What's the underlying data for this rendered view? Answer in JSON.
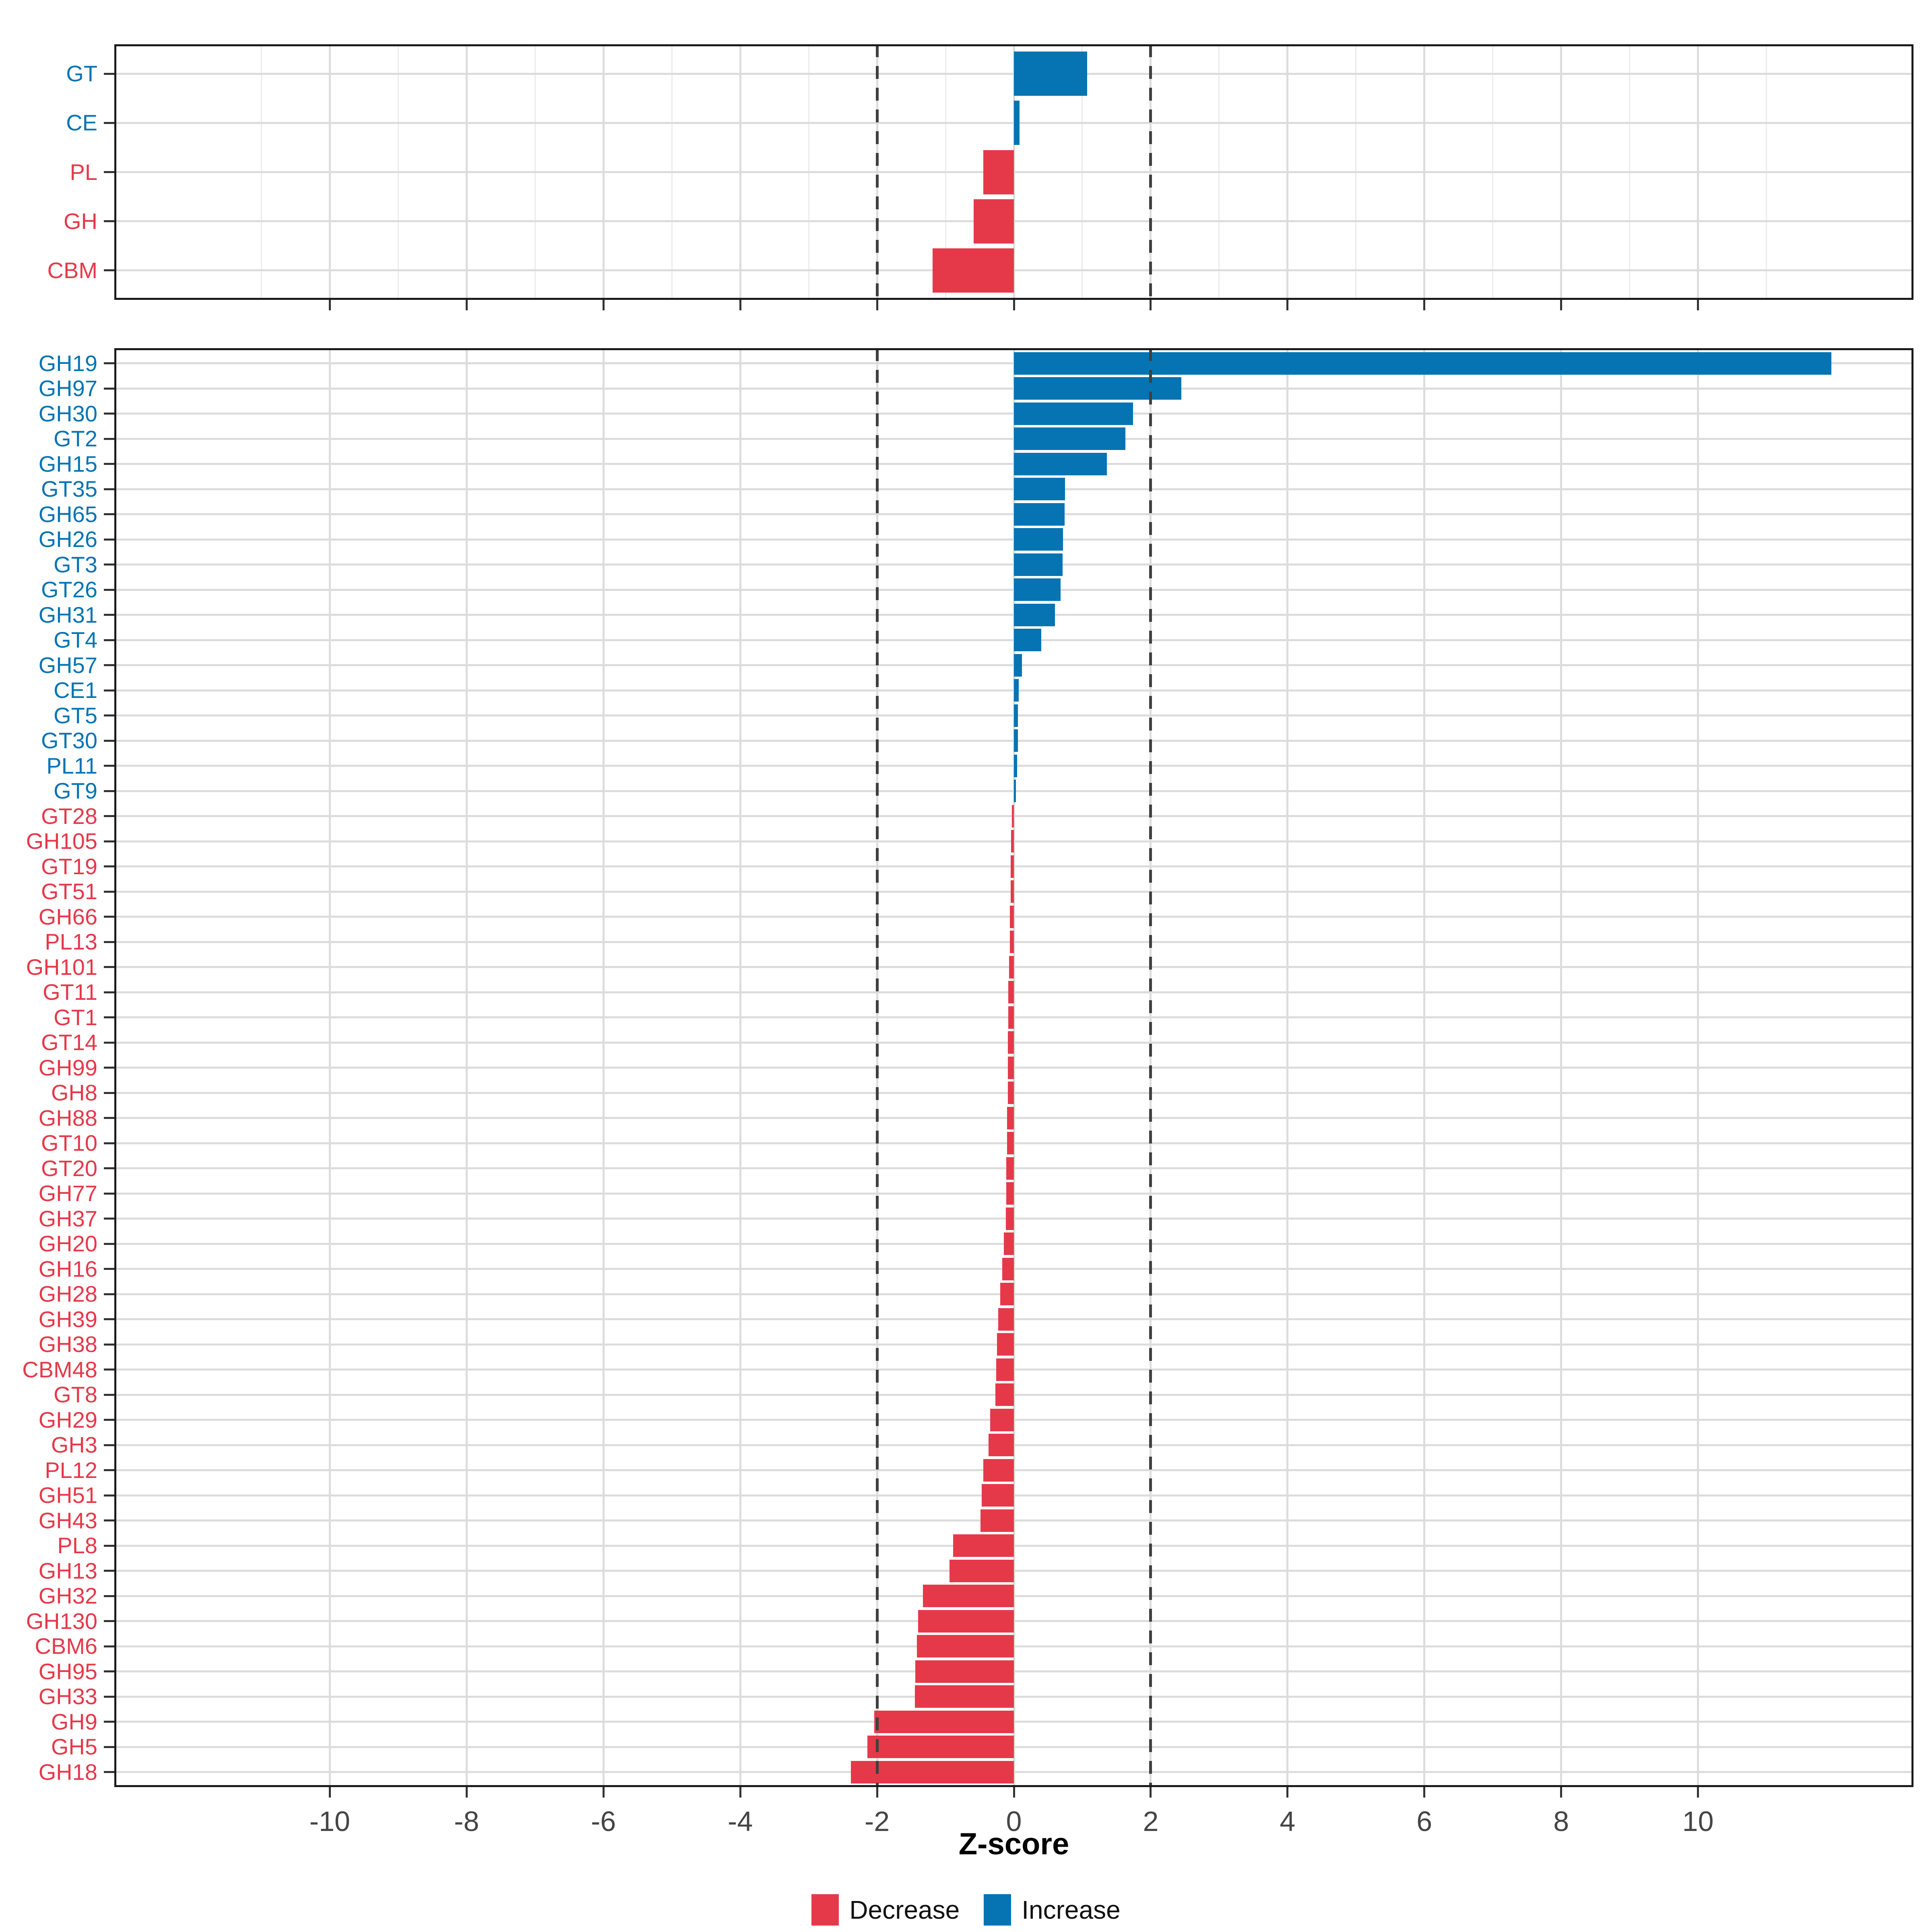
{
  "chart_data": {
    "type": "bar",
    "orientation": "horizontal",
    "xlabel": "Z-score",
    "x_domain": [
      -13.15,
      13.15
    ],
    "x_ticks": [
      -10,
      -8,
      -6,
      -4,
      -2,
      0,
      2,
      4,
      6,
      8,
      10
    ],
    "x_minor_ticks": [
      -11,
      -9,
      -7,
      -5,
      -3,
      -1,
      1,
      3,
      5,
      7,
      9,
      11
    ],
    "reference_lines": [
      -2,
      2
    ],
    "grid": "on",
    "legend_position": "bottom",
    "legend": [
      {
        "label": "Decrease",
        "color": "#E5394A"
      },
      {
        "label": "Increase",
        "color": "#0674B2"
      }
    ],
    "panels": [
      {
        "id": "cazyme-class-panel",
        "categories": [
          "GT",
          "CE",
          "PL",
          "GH",
          "CBM"
        ],
        "values": [
          1.07,
          0.08,
          -0.45,
          -0.59,
          -1.19
        ]
      },
      {
        "id": "cazyme-family-panel",
        "categories": [
          "GH19",
          "GH97",
          "GH30",
          "GT2",
          "GH15",
          "GT35",
          "GH65",
          "GH26",
          "GT3",
          "GT26",
          "GH31",
          "GT4",
          "GH57",
          "CE1",
          "GT5",
          "GT30",
          "PL11",
          "GT9",
          "GT28",
          "GH105",
          "GT19",
          "GT51",
          "GH66",
          "PL13",
          "GH101",
          "GT11",
          "GT1",
          "GT14",
          "GH99",
          "GH8",
          "GH88",
          "GT10",
          "GT20",
          "GH77",
          "GH37",
          "GH20",
          "GH16",
          "GH28",
          "GH39",
          "GH38",
          "CBM48",
          "GT8",
          "GH29",
          "GH3",
          "PL12",
          "GH51",
          "GH43",
          "PL8",
          "GH13",
          "GH32",
          "GH130",
          "CBM6",
          "GH95",
          "GH33",
          "GH9",
          "GH5",
          "GH18"
        ],
        "values": [
          11.95,
          2.45,
          1.74,
          1.63,
          1.36,
          0.75,
          0.74,
          0.72,
          0.71,
          0.68,
          0.6,
          0.4,
          0.12,
          0.07,
          0.06,
          0.06,
          0.05,
          0.03,
          -0.03,
          -0.04,
          -0.05,
          -0.05,
          -0.06,
          -0.06,
          -0.07,
          -0.08,
          -0.08,
          -0.09,
          -0.09,
          -0.09,
          -0.1,
          -0.1,
          -0.11,
          -0.11,
          -0.12,
          -0.15,
          -0.17,
          -0.2,
          -0.23,
          -0.25,
          -0.26,
          -0.27,
          -0.35,
          -0.37,
          -0.45,
          -0.47,
          -0.49,
          -0.89,
          -0.94,
          -1.33,
          -1.4,
          -1.42,
          -1.44,
          -1.45,
          -2.04,
          -2.14,
          -2.38
        ]
      }
    ]
  },
  "colors": {
    "increase": "#0674B2",
    "decrease": "#E5394A",
    "grid_major": "#DCDCDC",
    "grid_minor": "#ECECEC",
    "axis_text": "#454545",
    "tick_mark": "#333333",
    "panel_border": "#1A1A1A",
    "dash_line": "#3F3F3F"
  }
}
